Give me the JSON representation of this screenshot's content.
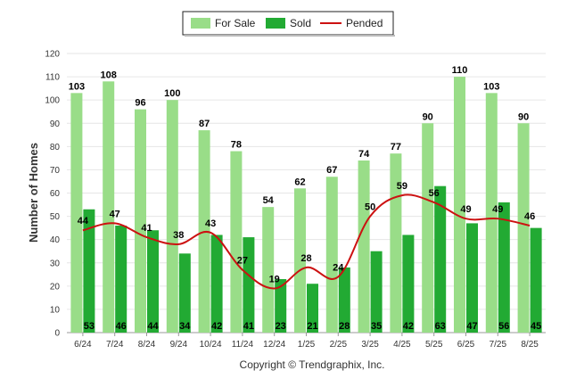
{
  "chart_data": {
    "type": "bar",
    "categories": [
      "6/24",
      "7/24",
      "8/24",
      "9/24",
      "10/24",
      "11/24",
      "12/24",
      "1/25",
      "2/25",
      "3/25",
      "4/25",
      "5/25",
      "6/25",
      "7/25",
      "8/25"
    ],
    "series": [
      {
        "name": "For Sale",
        "type": "bar",
        "color": "#99dd88",
        "values": [
          103,
          108,
          96,
          100,
          87,
          78,
          54,
          62,
          67,
          74,
          77,
          90,
          110,
          103,
          90
        ]
      },
      {
        "name": "Sold",
        "type": "bar",
        "color": "#22aa33",
        "values": [
          53,
          46,
          44,
          34,
          42,
          41,
          23,
          21,
          28,
          35,
          42,
          63,
          47,
          56,
          45
        ]
      },
      {
        "name": "Pended",
        "type": "line",
        "color": "#cc1111",
        "values": [
          44,
          47,
          41,
          38,
          43,
          27,
          19,
          28,
          24,
          50,
          59,
          56,
          49,
          49,
          46
        ]
      }
    ],
    "xlabel": "",
    "ylabel": "Number of Homes",
    "ylim": [
      0,
      120
    ],
    "yticks": [
      0,
      10,
      20,
      30,
      40,
      50,
      60,
      70,
      80,
      90,
      100,
      110,
      120
    ],
    "grid": true,
    "legend_position": "top-center",
    "footer": "Copyright © Trendgraphix, Inc."
  }
}
